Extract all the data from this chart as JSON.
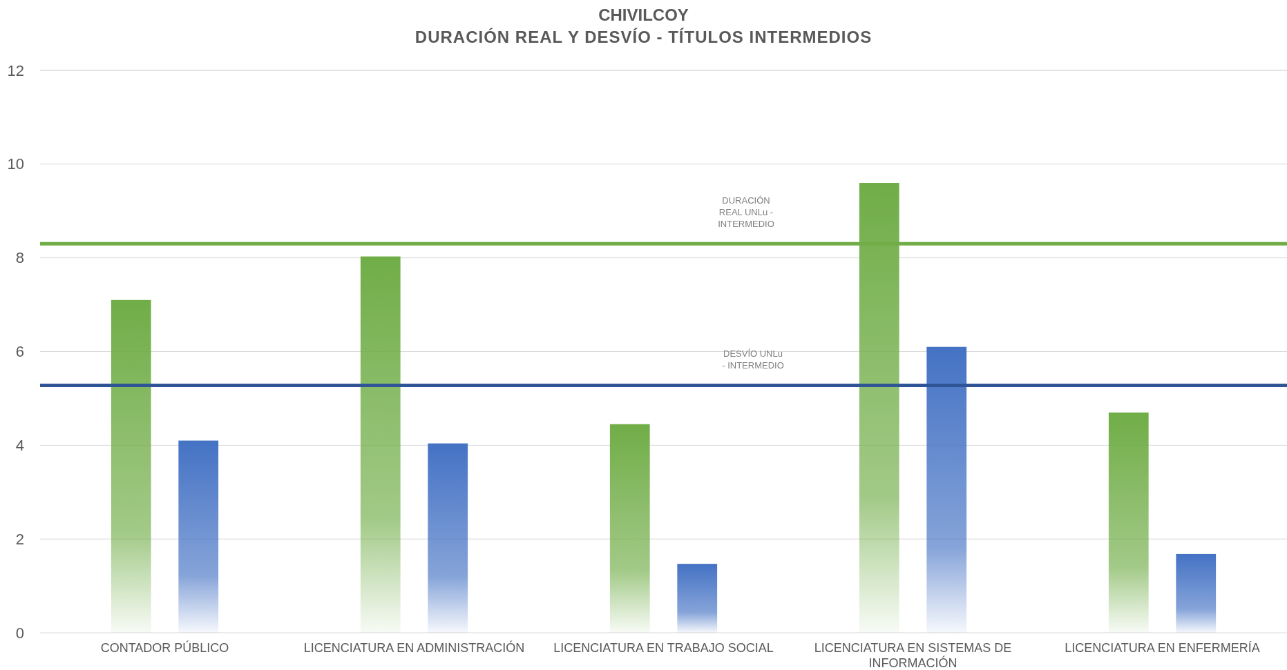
{
  "chart_data": {
    "type": "bar",
    "title": "CHIVILCOY",
    "subtitle": "DURACIÓN REAL Y DESVÍO - TÍTULOS INTERMEDIOS",
    "categories": [
      "CONTADOR PÚBLICO",
      "LICENCIATURA EN ADMINISTRACIÓN",
      "LICENCIATURA EN TRABAJO SOCIAL",
      "LICENCIATURA EN SISTEMAS DE INFORMACIÓN",
      "LICENCIATURA EN ENFERMERÍA"
    ],
    "series": [
      {
        "color": "#70ad47",
        "values": [
          7.1,
          8.03,
          4.45,
          9.6,
          4.7
        ]
      },
      {
        "color": "#4472c4",
        "values": [
          4.1,
          4.04,
          1.47,
          6.1,
          1.68
        ]
      }
    ],
    "ylim": [
      0,
      12
    ],
    "yticks": [
      0,
      2,
      4,
      6,
      8,
      10,
      12
    ],
    "grid": "y",
    "ref_lines": [
      {
        "axis": "y",
        "value": 8.3,
        "label": "DURACIÓN REAL UNLu - INTERMEDIO",
        "color": "#70ad47"
      },
      {
        "axis": "y",
        "value": 5.28,
        "label": "DESVÍO  UNLu - INTERMEDIO",
        "color": "#2f5597"
      }
    ]
  }
}
